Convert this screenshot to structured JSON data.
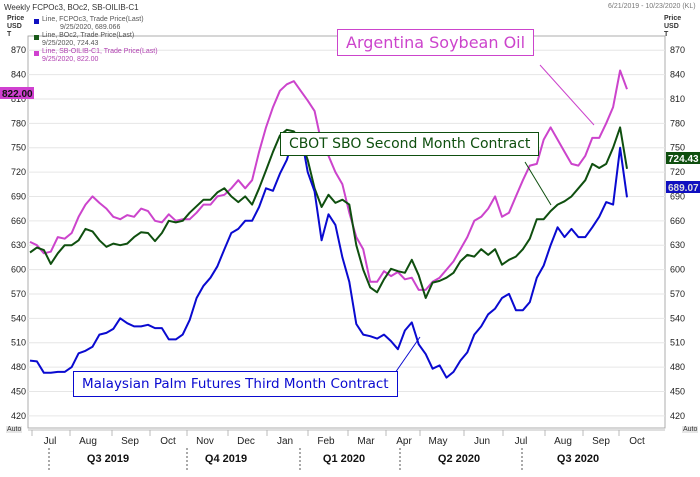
{
  "header": {
    "title": "Weekly FCPOc3, BOc2, SB-OILIB-C1",
    "date_range": "6/21/2019 - 10/23/2020 (KL)",
    "price_label": "Price",
    "currency_label": "USD",
    "unit_label": "T",
    "auto_left": "Auto",
    "auto_right": "Auto"
  },
  "legend": [
    {
      "line1": "Line, FCPOc3, Trade Price(Last)",
      "line2": "9/25/2020, 689.066",
      "color": "#1010c0"
    },
    {
      "line1": "Line, BOc2, Trade Price(Last)",
      "line2": "9/25/2020, 724.43",
      "color": "#1a5a1a"
    },
    {
      "line1": "Line, SB-OILIB-C1, Trade Price(Last)",
      "line2": "9/25/2020, 822.00",
      "color": "#d040d0"
    }
  ],
  "callouts": {
    "soy": "Argentina Soybean Oil",
    "cbot": "CBOT SBO Second Month Contract",
    "palm": "Malaysian Palm Futures Third Month Contract"
  },
  "chart_data": {
    "type": "line",
    "ylim": [
      405,
      885
    ],
    "y_ticks": [
      420,
      450,
      480,
      510,
      540,
      570,
      600,
      630,
      660,
      690,
      720,
      750,
      780,
      810,
      840,
      870
    ],
    "months": [
      "Jul",
      "Aug",
      "Sep",
      "Oct",
      "Nov",
      "Dec",
      "Jan",
      "Feb",
      "Mar",
      "Apr",
      "May",
      "Jun",
      "Jul",
      "Aug",
      "Sep",
      "Oct"
    ],
    "quarters": [
      "Q3 2019",
      "Q4 2019",
      "Q1 2020",
      "Q2 2020",
      "Q3 2020"
    ],
    "last_labels": {
      "soy": "822.00",
      "cbot": "724.43",
      "palm": "689.07"
    },
    "series": [
      {
        "key": "soy",
        "color": "#cc44cc",
        "values": [
          634,
          630,
          620,
          622,
          640,
          638,
          645,
          665,
          680,
          690,
          682,
          675,
          665,
          662,
          667,
          665,
          675,
          672,
          660,
          658,
          668,
          660,
          662,
          662,
          670,
          680,
          680,
          690,
          692,
          700,
          710,
          700,
          710,
          745,
          775,
          800,
          820,
          828,
          832,
          820,
          808,
          795,
          755,
          740,
          720,
          705,
          670,
          640,
          625,
          585,
          585,
          598,
          592,
          597,
          588,
          590,
          575,
          575,
          585,
          590,
          600,
          610,
          625,
          640,
          660,
          665,
          675,
          690,
          665,
          670,
          690,
          710,
          728,
          730,
          760,
          775,
          760,
          745,
          730,
          728,
          740,
          762,
          762,
          780,
          800,
          845,
          822
        ]
      },
      {
        "key": "cbot",
        "color": "#0f4f0f",
        "values": [
          621,
          627,
          624,
          607,
          620,
          630,
          630,
          636,
          650,
          647,
          636,
          628,
          632,
          630,
          632,
          640,
          646,
          645,
          635,
          645,
          660,
          658,
          660,
          670,
          678,
          686,
          686,
          695,
          700,
          690,
          683,
          690,
          680,
          700,
          722,
          745,
          765,
          772,
          770,
          760,
          735,
          700,
          677,
          692,
          682,
          686,
          680,
          630,
          600,
          578,
          572,
          588,
          601,
          598,
          596,
          612,
          593,
          565,
          584,
          586,
          590,
          596,
          610,
          618,
          616,
          625,
          618,
          625,
          606,
          612,
          616,
          625,
          638,
          662,
          662,
          672,
          680,
          684,
          690,
          700,
          710,
          730,
          725,
          730,
          750,
          775,
          724
        ]
      },
      {
        "key": "palm",
        "color": "#0a0ad0",
        "values": [
          488,
          487,
          473,
          473,
          474,
          474,
          480,
          497,
          500,
          505,
          520,
          522,
          527,
          540,
          534,
          530,
          530,
          532,
          528,
          528,
          514,
          514,
          520,
          538,
          565,
          580,
          590,
          604,
          625,
          645,
          650,
          660,
          660,
          677,
          700,
          697,
          718,
          735,
          763,
          768,
          720,
          696,
          636,
          668,
          655,
          615,
          585,
          533,
          520,
          518,
          515,
          520,
          512,
          502,
          525,
          535,
          508,
          496,
          478,
          482,
          467,
          474,
          488,
          498,
          520,
          530,
          545,
          552,
          565,
          570,
          550,
          550,
          560,
          590,
          605,
          630,
          652,
          640,
          650,
          640,
          640,
          652,
          665,
          683,
          680,
          750,
          689
        ]
      }
    ]
  }
}
